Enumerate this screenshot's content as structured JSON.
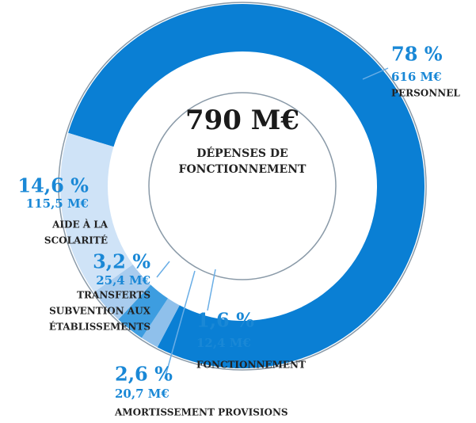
{
  "chart_data": {
    "type": "donut",
    "center_value": "790 M€",
    "center_label": [
      "DÉPENSES DE",
      "FONCTIONNEMENT"
    ],
    "categories": [
      [
        "PERSONNEL"
      ],
      [
        "FONCTIONNEMENT"
      ],
      [
        "AMORTISSEMENT PROVISIONS"
      ],
      [
        "TRANSFERTS",
        "SUBVENTION AUX",
        "ÉTABLISSEMENTS"
      ],
      [
        "AIDE À LA",
        "SCOLARITÉ"
      ]
    ],
    "values": [
      78,
      1.6,
      2.6,
      3.2,
      14.6
    ],
    "value_labels": [
      "78 %",
      "1,6 %",
      "2,6 %",
      "3,2 %",
      "14,6 %"
    ],
    "amount_labels": [
      "616 M€",
      "12,4 M€",
      "20,7 M€",
      "25,4 M€",
      "115,5 M€"
    ],
    "colors": [
      "#0a7fd4",
      "#8fc0eb",
      "#3d9de0",
      "#a9ccee",
      "#cfe3f7"
    ]
  }
}
